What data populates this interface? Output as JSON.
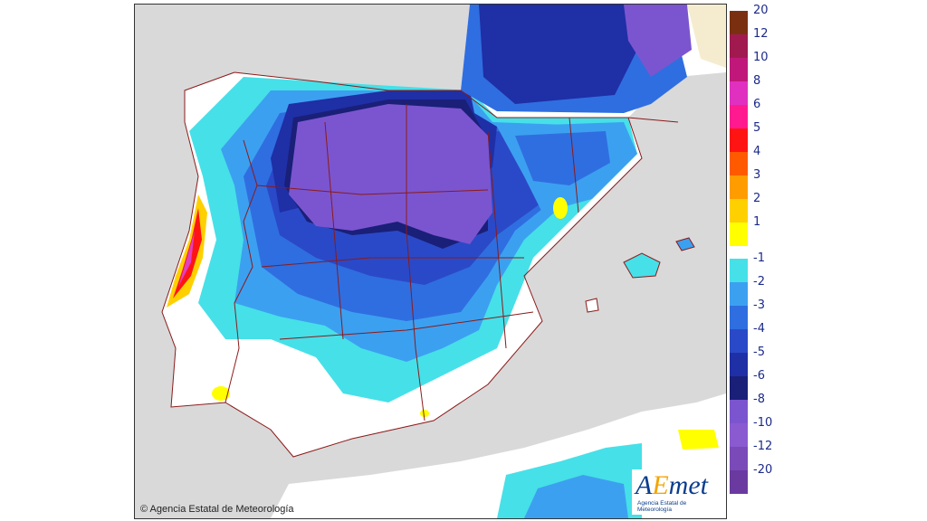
{
  "map": {
    "copyright": "© Agencia Estatal de Meteorología",
    "logo_text_a": "A",
    "logo_text_e": "E",
    "logo_text_rest": "met",
    "logo_subtitle": "Agencia Estatal de Meteorología",
    "colors": {
      "sea": "#d9d9d9",
      "land_neutral": "#ffffff",
      "border": "#8b1a1a",
      "n1": "#46e0e8",
      "n2": "#3ca0f0",
      "n3": "#2f6ee0",
      "n4": "#2a49c8",
      "n5": "#1f2fa6",
      "n6": "#1a1f78",
      "n8": "#7b55cf",
      "n10": "#8a5ad0",
      "p1": "#ffff00",
      "p2": "#ffd000",
      "p3": "#ff9d00",
      "p4": "#ff5a00",
      "p5": "#ff1414",
      "p6": "#ff1493",
      "p8": "#e040c0"
    }
  },
  "legend": {
    "items": [
      {
        "label": "20",
        "color": "#7a3010"
      },
      {
        "label": "12",
        "color": "#a01a50"
      },
      {
        "label": "10",
        "color": "#c0187a"
      },
      {
        "label": "8",
        "color": "#e030c0"
      },
      {
        "label": "6",
        "color": "#ff1a90"
      },
      {
        "label": "5",
        "color": "#ff1414"
      },
      {
        "label": "4",
        "color": "#ff5a00"
      },
      {
        "label": "3",
        "color": "#ff9d00"
      },
      {
        "label": "2",
        "color": "#ffd000"
      },
      {
        "label": "1",
        "color": "#ffff00"
      },
      {
        "label": "-1",
        "color": "#46e0e8"
      },
      {
        "label": "-2",
        "color": "#3ca0f0"
      },
      {
        "label": "-3",
        "color": "#2f6ee0"
      },
      {
        "label": "-4",
        "color": "#2a49c8"
      },
      {
        "label": "-5",
        "color": "#1f2fa6"
      },
      {
        "label": "-6",
        "color": "#1a1f78"
      },
      {
        "label": "-8",
        "color": "#7b55cf"
      },
      {
        "label": "-10",
        "color": "#8a5ad0"
      },
      {
        "label": "-12",
        "color": "#7a4ab8"
      },
      {
        "label": "-20",
        "color": "#6a3aa0"
      }
    ]
  }
}
